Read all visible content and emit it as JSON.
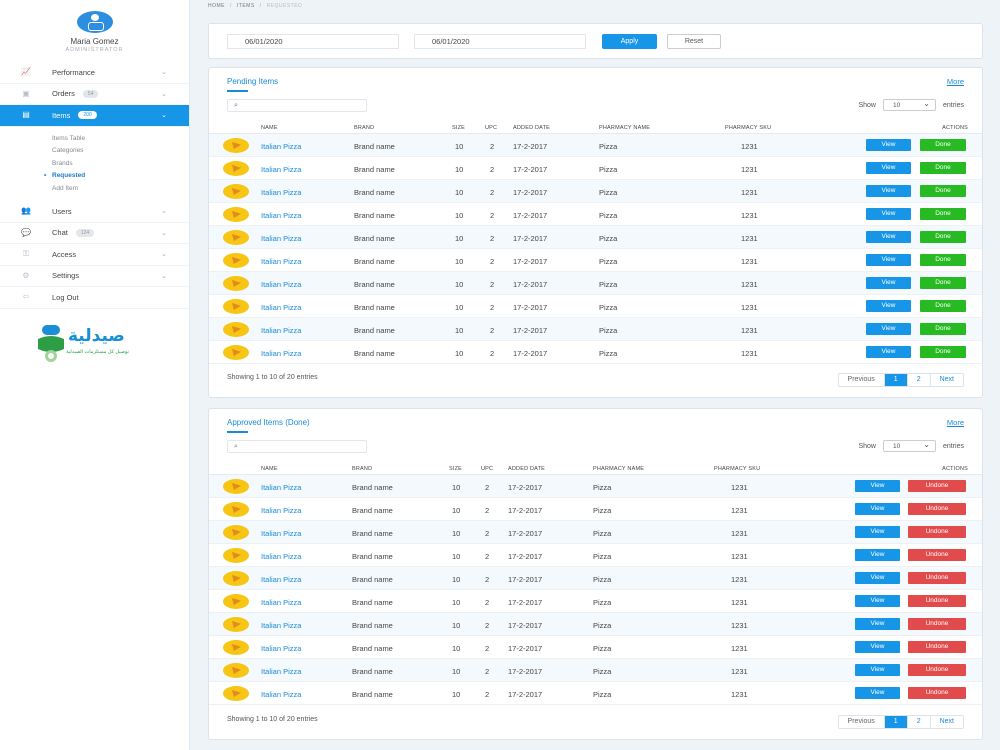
{
  "profile": {
    "name": "Maria Gomez",
    "role": "ADMINISTRATOR"
  },
  "sidebar": {
    "items": [
      {
        "label": "Performance",
        "icon": "chart-icon"
      },
      {
        "label": "Orders",
        "badge": "54",
        "icon": "box-icon"
      },
      {
        "label": "Items",
        "badge": "200",
        "icon": "items-icon"
      },
      {
        "label": "Users",
        "icon": "users-icon"
      },
      {
        "label": "Chat",
        "badge": "124",
        "icon": "chat-icon"
      },
      {
        "label": "Access",
        "icon": "key-icon"
      },
      {
        "label": "Settings",
        "icon": "gear-icon"
      },
      {
        "label": "Log Out",
        "icon": "logout-icon"
      }
    ],
    "submenu": [
      "Items Table",
      "Categories",
      "Brands",
      "Requested",
      "Add Item"
    ]
  },
  "logo": {
    "text": "صيدلية",
    "tagline": "توصيل كل مستلزمات الصيدلية"
  },
  "breadcrumb": [
    "HOME",
    "ITEMS",
    "REQUESTED"
  ],
  "filter": {
    "date_from": "06/01/2020",
    "date_to": "06/01/2020",
    "apply": "Apply",
    "reset": "Reset"
  },
  "pending": {
    "title": "Pending Items",
    "more": "More",
    "show": "Show",
    "entries_val": "10",
    "entries": "entries",
    "columns": [
      "NAME",
      "BRAND",
      "SIZE",
      "UPC",
      "ADDED DATE",
      "PHARMACY NAME",
      "PHARMACY SKU",
      "ACTIONS"
    ],
    "rows": [
      {
        "name": "Italian Pizza",
        "brand": "Brand name",
        "size": "10",
        "upc": "2",
        "date": "17-2-2017",
        "pharmacy": "Pizza",
        "sku": "1231"
      },
      {
        "name": "Italian Pizza",
        "brand": "Brand name",
        "size": "10",
        "upc": "2",
        "date": "17-2-2017",
        "pharmacy": "Pizza",
        "sku": "1231"
      },
      {
        "name": "Italian Pizza",
        "brand": "Brand name",
        "size": "10",
        "upc": "2",
        "date": "17-2-2017",
        "pharmacy": "Pizza",
        "sku": "1231"
      },
      {
        "name": "Italian Pizza",
        "brand": "Brand name",
        "size": "10",
        "upc": "2",
        "date": "17-2-2017",
        "pharmacy": "Pizza",
        "sku": "1231"
      },
      {
        "name": "Italian Pizza",
        "brand": "Brand name",
        "size": "10",
        "upc": "2",
        "date": "17-2-2017",
        "pharmacy": "Pizza",
        "sku": "1231"
      },
      {
        "name": "Italian Pizza",
        "brand": "Brand name",
        "size": "10",
        "upc": "2",
        "date": "17-2-2017",
        "pharmacy": "Pizza",
        "sku": "1231"
      },
      {
        "name": "Italian Pizza",
        "brand": "Brand name",
        "size": "10",
        "upc": "2",
        "date": "17-2-2017",
        "pharmacy": "Pizza",
        "sku": "1231"
      },
      {
        "name": "Italian Pizza",
        "brand": "Brand name",
        "size": "10",
        "upc": "2",
        "date": "17-2-2017",
        "pharmacy": "Pizza",
        "sku": "1231"
      },
      {
        "name": "Italian Pizza",
        "brand": "Brand name",
        "size": "10",
        "upc": "2",
        "date": "17-2-2017",
        "pharmacy": "Pizza",
        "sku": "1231"
      },
      {
        "name": "Italian Pizza",
        "brand": "Brand name",
        "size": "10",
        "upc": "2",
        "date": "17-2-2017",
        "pharmacy": "Pizza",
        "sku": "1231"
      }
    ],
    "view": "View",
    "action": "Done",
    "info": "Showing 1 to 10 of 20 entries",
    "pager": {
      "prev": "Previous",
      "p1": "1",
      "p2": "2",
      "next": "Next"
    }
  },
  "approved": {
    "title": "Approved Items (Done)",
    "more": "More",
    "show": "Show",
    "entries_val": "10",
    "entries": "entries",
    "columns": [
      "NAME",
      "BRAND",
      "SIZE",
      "UPC",
      "ADDED DATE",
      "PHARMACY NAME",
      "PHARMACY SKU",
      "ACTIONS"
    ],
    "rows": [
      {
        "name": "Italian Pizza",
        "brand": "Brand name",
        "size": "10",
        "upc": "2",
        "date": "17-2-2017",
        "pharmacy": "Pizza",
        "sku": "1231"
      },
      {
        "name": "Italian Pizza",
        "brand": "Brand name",
        "size": "10",
        "upc": "2",
        "date": "17-2-2017",
        "pharmacy": "Pizza",
        "sku": "1231"
      },
      {
        "name": "Italian Pizza",
        "brand": "Brand name",
        "size": "10",
        "upc": "2",
        "date": "17-2-2017",
        "pharmacy": "Pizza",
        "sku": "1231"
      },
      {
        "name": "Italian Pizza",
        "brand": "Brand name",
        "size": "10",
        "upc": "2",
        "date": "17-2-2017",
        "pharmacy": "Pizza",
        "sku": "1231"
      },
      {
        "name": "Italian Pizza",
        "brand": "Brand name",
        "size": "10",
        "upc": "2",
        "date": "17-2-2017",
        "pharmacy": "Pizza",
        "sku": "1231"
      },
      {
        "name": "Italian Pizza",
        "brand": "Brand name",
        "size": "10",
        "upc": "2",
        "date": "17-2-2017",
        "pharmacy": "Pizza",
        "sku": "1231"
      },
      {
        "name": "Italian Pizza",
        "brand": "Brand name",
        "size": "10",
        "upc": "2",
        "date": "17-2-2017",
        "pharmacy": "Pizza",
        "sku": "1231"
      },
      {
        "name": "Italian Pizza",
        "brand": "Brand name",
        "size": "10",
        "upc": "2",
        "date": "17-2-2017",
        "pharmacy": "Pizza",
        "sku": "1231"
      },
      {
        "name": "Italian Pizza",
        "brand": "Brand name",
        "size": "10",
        "upc": "2",
        "date": "17-2-2017",
        "pharmacy": "Pizza",
        "sku": "1231"
      },
      {
        "name": "Italian Pizza",
        "brand": "Brand name",
        "size": "10",
        "upc": "2",
        "date": "17-2-2017",
        "pharmacy": "Pizza",
        "sku": "1231"
      }
    ],
    "view": "View",
    "action": "Undone",
    "info": "Showing 1 to 10 of 20 entries",
    "pager": {
      "prev": "Previous",
      "p1": "1",
      "p2": "2",
      "next": "Next"
    }
  },
  "colors": {
    "accent": "#1795e6",
    "done": "#27ba22",
    "undone": "#e24b4b"
  }
}
